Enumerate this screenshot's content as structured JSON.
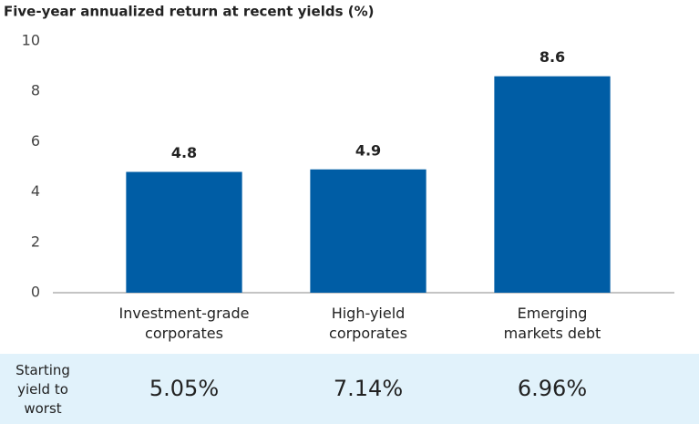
{
  "chart_data": {
    "type": "bar",
    "title": "Five-year annualized return at recent yields (%)",
    "categories": [
      "Investment-grade corporates",
      "High-yield corporates",
      "Emerging markets debt"
    ],
    "values": [
      4.8,
      4.9,
      8.6
    ],
    "color": "#005da5",
    "ylim": [
      0,
      10
    ],
    "yticks": [
      0,
      2,
      4,
      6,
      8,
      10
    ],
    "grid": false
  },
  "table": {
    "label": "Starting yield to worst",
    "values": [
      "5.05%",
      "7.14%",
      "6.96%"
    ]
  }
}
